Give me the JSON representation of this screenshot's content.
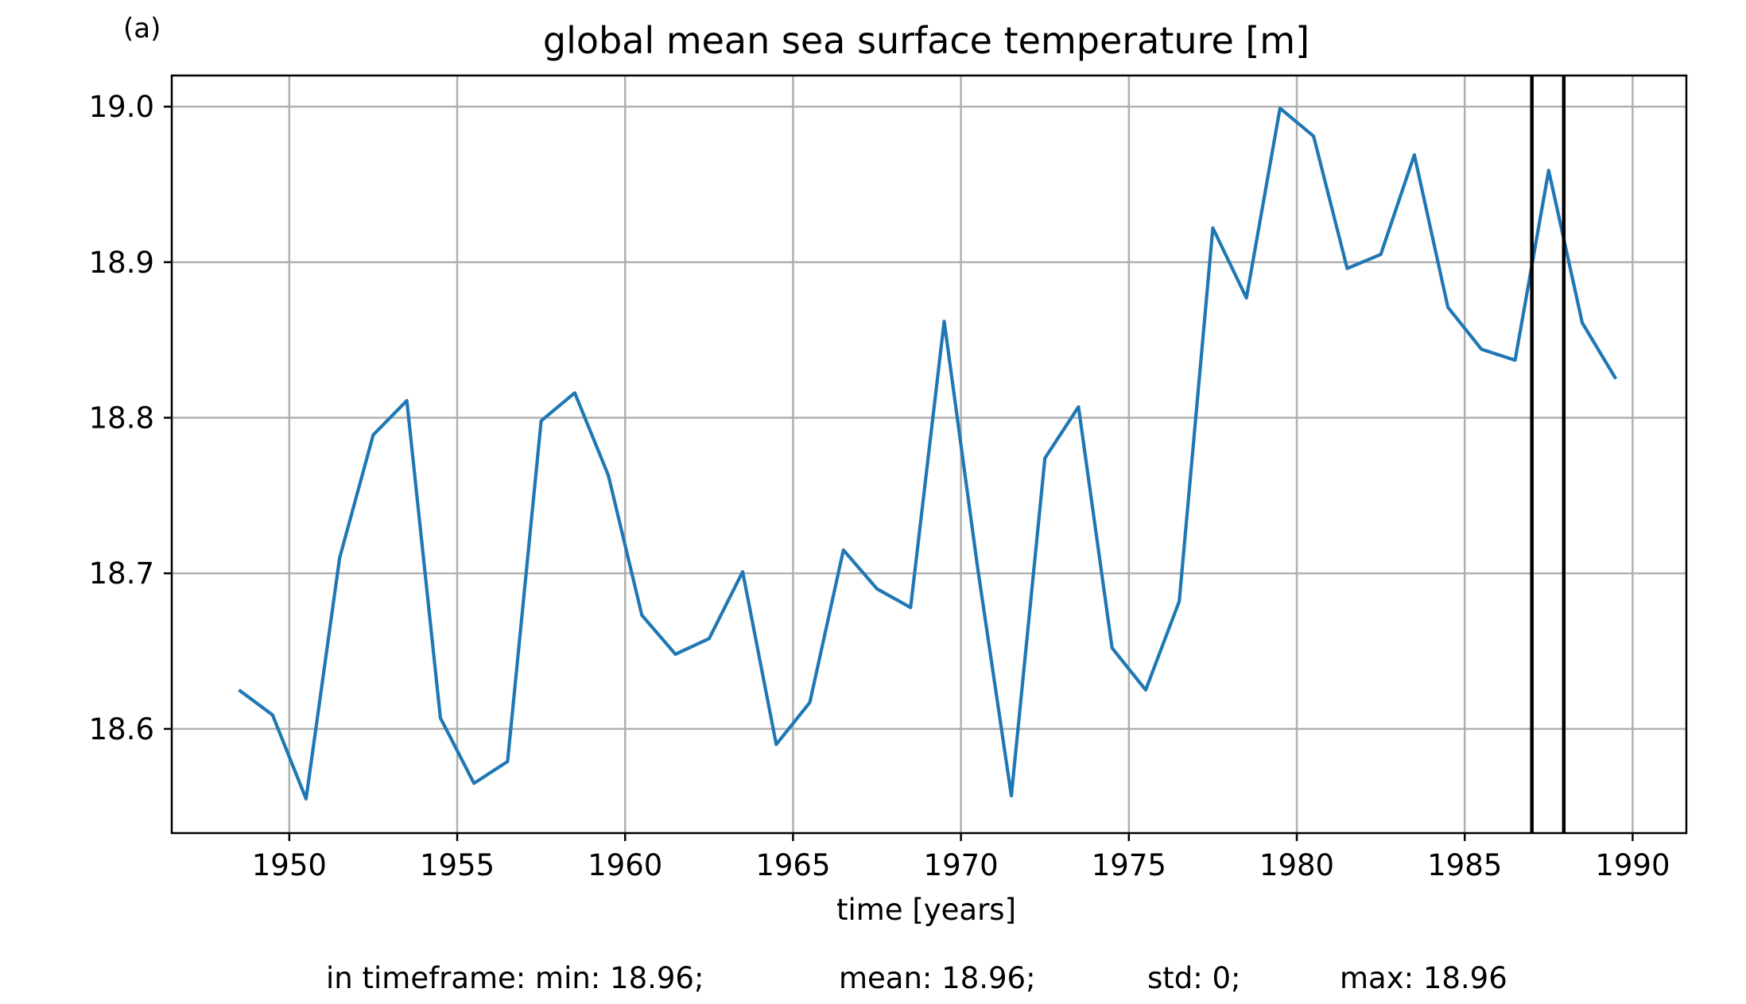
{
  "panel_label": "(a)",
  "stats": {
    "min": "in timeframe: min: 18.96;",
    "mean": "mean: 18.96;",
    "std": "std: 0;",
    "max": "max: 18.96"
  },
  "chart_data": {
    "type": "line",
    "title": "global mean sea surface temperature [m]",
    "xlabel": "time [years]",
    "ylabel": "",
    "xlim": [
      1946.5,
      1991.6
    ],
    "ylim": [
      18.533,
      19.02
    ],
    "xticks": [
      1950,
      1955,
      1960,
      1965,
      1970,
      1975,
      1980,
      1985,
      1990
    ],
    "yticks": [
      18.6,
      18.7,
      18.8,
      18.9,
      19.0
    ],
    "xtick_labels": [
      "1950",
      "1955",
      "1960",
      "1965",
      "1970",
      "1975",
      "1980",
      "1985",
      "1990"
    ],
    "ytick_labels": [
      "18.6",
      "18.7",
      "18.8",
      "18.9",
      "19.0"
    ],
    "grid": true,
    "series": [
      {
        "color": "#1f77b4",
        "x": [
          1948.5,
          1949.5,
          1950.5,
          1951.5,
          1952.5,
          1953.5,
          1954.5,
          1955.5,
          1956.5,
          1957.5,
          1958.5,
          1959.5,
          1960.5,
          1961.5,
          1962.5,
          1963.5,
          1964.5,
          1965.5,
          1966.5,
          1967.5,
          1968.5,
          1969.5,
          1970.5,
          1971.5,
          1972.5,
          1973.5,
          1974.5,
          1975.5,
          1976.5,
          1977.5,
          1978.5,
          1979.5,
          1980.5,
          1981.5,
          1982.5,
          1983.5,
          1984.5,
          1985.5,
          1986.5,
          1987.5,
          1988.5,
          1989.5
        ],
        "y": [
          18.625,
          18.609,
          18.555,
          18.71,
          18.789,
          18.811,
          18.607,
          18.565,
          18.579,
          18.798,
          18.816,
          18.763,
          18.673,
          18.648,
          18.658,
          18.701,
          18.59,
          18.617,
          18.715,
          18.69,
          18.678,
          18.862,
          18.703,
          18.557,
          18.774,
          18.807,
          18.652,
          18.625,
          18.682,
          18.922,
          18.877,
          18.999,
          18.981,
          18.896,
          18.905,
          18.969,
          18.871,
          18.844,
          18.837,
          18.959,
          18.861,
          18.825
        ]
      }
    ],
    "vertical_markers": [
      1987.0,
      1987.95
    ]
  }
}
